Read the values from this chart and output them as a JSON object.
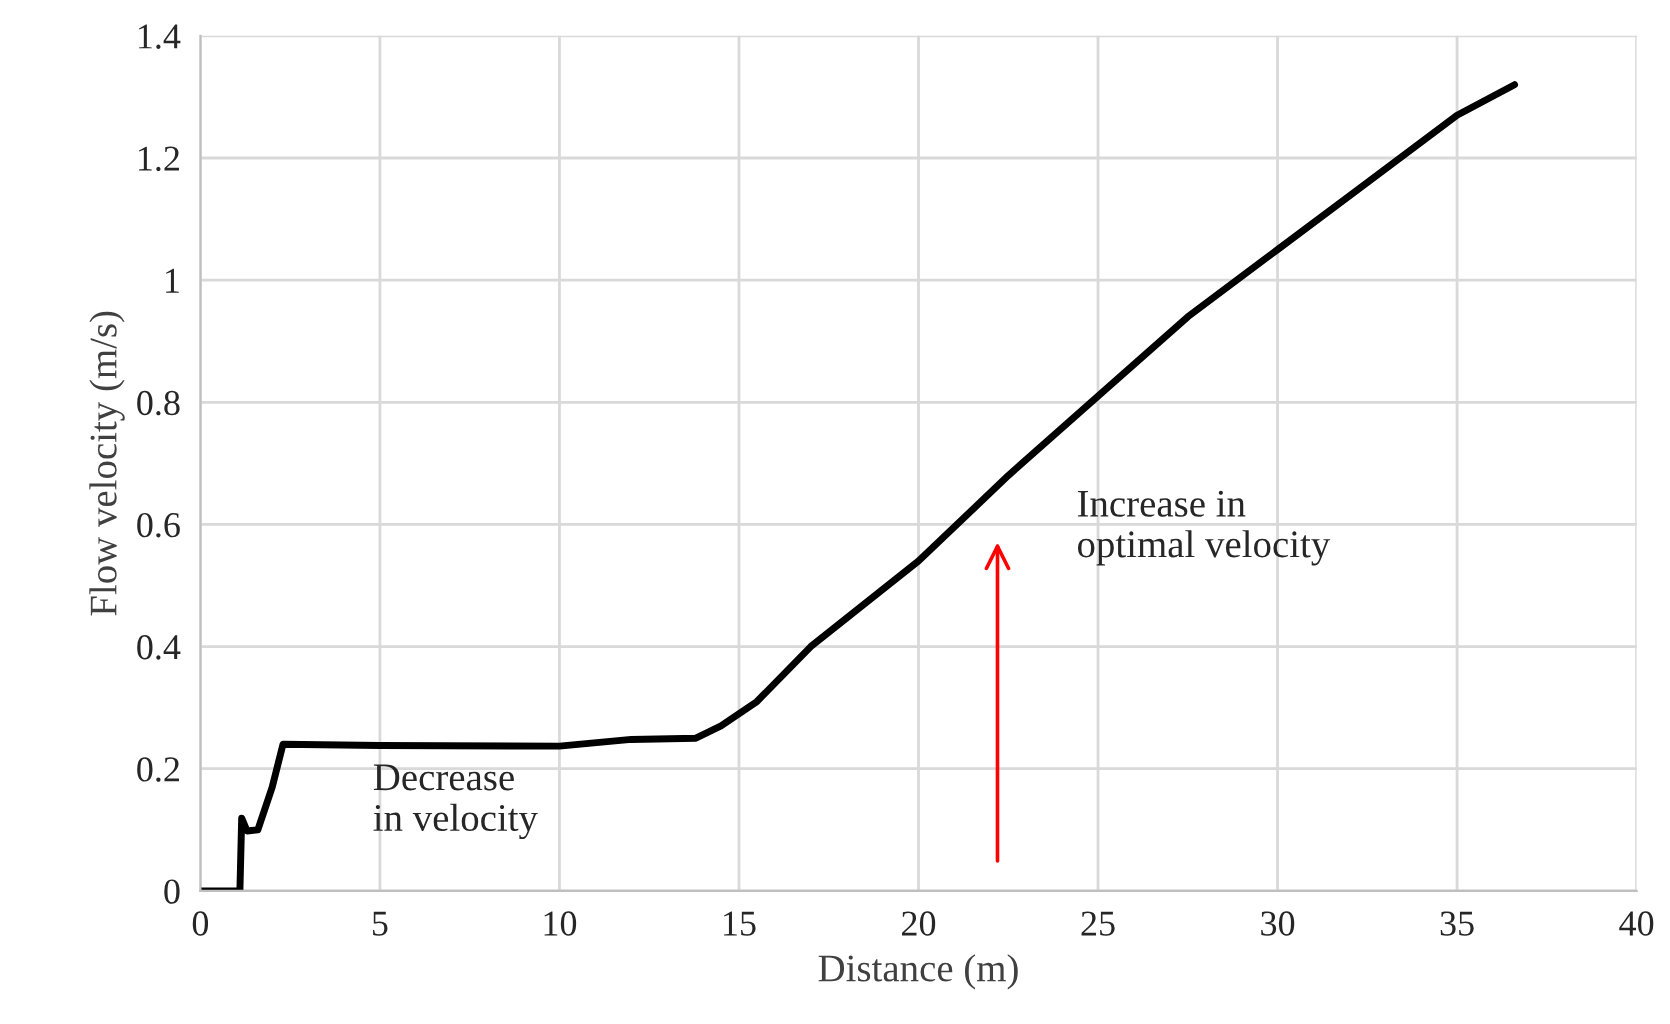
{
  "chart_data": {
    "type": "line",
    "xlabel": "Distance (m)",
    "ylabel": "Flow velocity (m/s)",
    "xlim": [
      0,
      40
    ],
    "ylim": [
      0,
      1.4
    ],
    "xticks": [
      0,
      5,
      10,
      15,
      20,
      25,
      30,
      35,
      40
    ],
    "yticks": [
      0,
      0.2,
      0.4,
      0.6,
      0.8,
      1,
      1.2,
      1.4
    ],
    "grid": true,
    "series": [
      {
        "color": "#000000",
        "x": [
          0,
          1.1,
          1.15,
          1.3,
          1.6,
          2.0,
          2.3,
          5,
          10,
          12,
          13.8,
          14.5,
          15.5,
          17,
          20,
          22.5,
          25,
          27.5,
          30,
          32.5,
          35,
          36.6
        ],
        "values": [
          0,
          0,
          0.119,
          0.098,
          0.1,
          0.17,
          0.24,
          0.238,
          0.237,
          0.248,
          0.25,
          0.27,
          0.31,
          0.4,
          0.54,
          0.68,
          0.81,
          0.94,
          1.05,
          1.16,
          1.27,
          1.32
        ]
      }
    ],
    "annotations": [
      "Decrease\nin velocity",
      "Increase in\noptimal velocity"
    ]
  }
}
